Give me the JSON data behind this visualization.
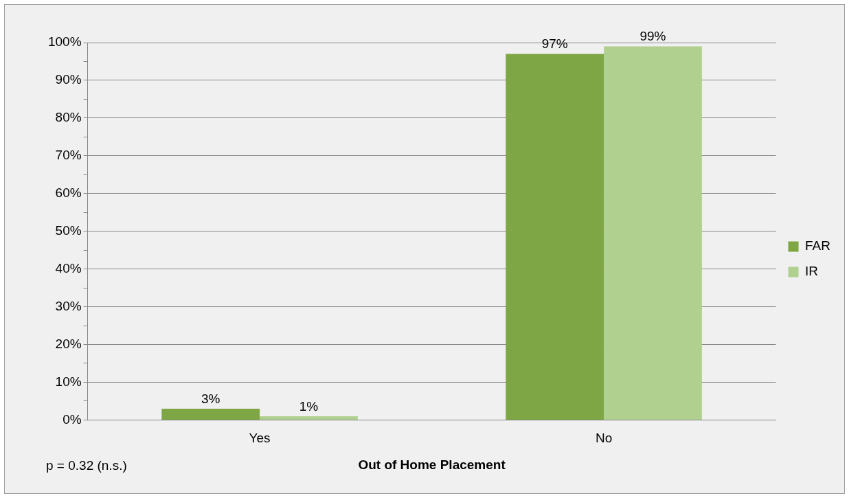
{
  "chart_data": {
    "type": "bar",
    "xlabel": "Out of Home Placement",
    "categories": [
      "Yes",
      "No"
    ],
    "series": [
      {
        "name": "FAR",
        "color": "#7ea644",
        "values": [
          3,
          97
        ]
      },
      {
        "name": "IR",
        "color": "#b0d090",
        "values": [
          1,
          99
        ]
      }
    ],
    "ylim": [
      0,
      100
    ],
    "yticks": [
      {
        "value": 0,
        "label": "0%"
      },
      {
        "value": 5,
        "label": null
      },
      {
        "value": 10,
        "label": "10%"
      },
      {
        "value": 15,
        "label": null
      },
      {
        "value": 20,
        "label": "20%"
      },
      {
        "value": 25,
        "label": null
      },
      {
        "value": 30,
        "label": "30%"
      },
      {
        "value": 35,
        "label": null
      },
      {
        "value": 40,
        "label": "40%"
      },
      {
        "value": 45,
        "label": null
      },
      {
        "value": 50,
        "label": "50%"
      },
      {
        "value": 55,
        "label": null
      },
      {
        "value": 60,
        "label": "60%"
      },
      {
        "value": 65,
        "label": null
      },
      {
        "value": 70,
        "label": "70%"
      },
      {
        "value": 75,
        "label": null
      },
      {
        "value": 80,
        "label": "80%"
      },
      {
        "value": 85,
        "label": null
      },
      {
        "value": 90,
        "label": "90%"
      },
      {
        "value": 95,
        "label": null
      },
      {
        "value": 100,
        "label": "100%"
      }
    ],
    "value_labels": [
      [
        "3%",
        "97%"
      ],
      [
        "1%",
        "99%"
      ]
    ],
    "grid": "y",
    "legend": "right",
    "annotations": [
      "p = 0.32 (n.s.)"
    ]
  }
}
